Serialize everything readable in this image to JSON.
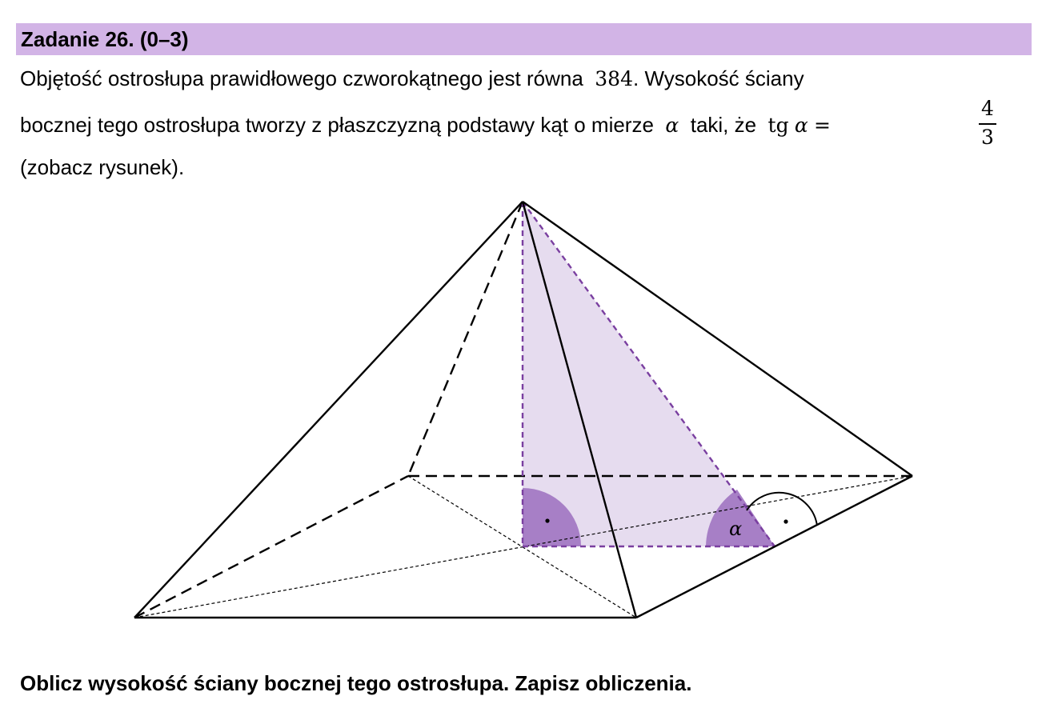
{
  "task": {
    "title": "Zadanie 26. (0–3)"
  },
  "statement": {
    "line1_text": "Objętość ostrosłupa prawidłowego czworokątnego jest równa",
    "volume": "384",
    "line1_tail": ". Wysokość ściany",
    "line2_text": "bocznej tego ostrosłupa tworzy z płaszczyzną podstawy kąt o mierze",
    "angle_symbol": "α",
    "line2_mid": "taki, że",
    "tg_label": "tg",
    "equals": "=",
    "tg_numerator": "4",
    "tg_denominator": "3",
    "line3_text": "(zobacz rysunek)."
  },
  "figure": {
    "angle_label": "α",
    "highlight_color": "#7a3fa0",
    "highlight_fill": "#e6dcef",
    "angle_fill": "#a77fc6"
  },
  "instruction": "Oblicz wysokość ściany bocznej tego ostrosłupa. Zapisz obliczenia."
}
